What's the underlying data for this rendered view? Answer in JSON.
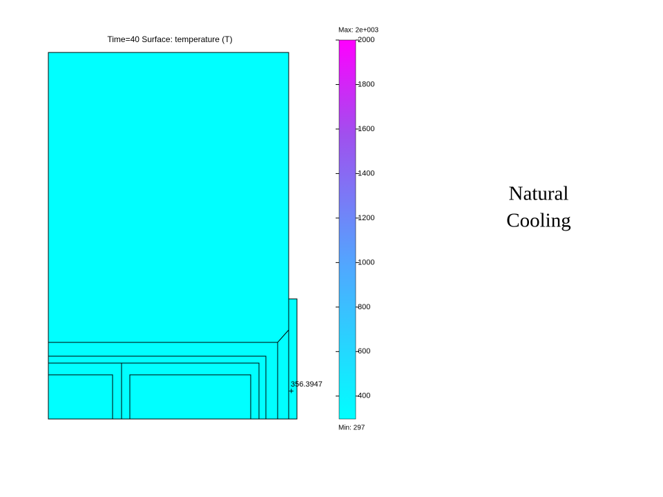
{
  "plot": {
    "title": "Time=40  Surface: temperature (T)",
    "probe_label": "356.3947",
    "colorbar": {
      "max_label": "Max: 2e+003",
      "min_label": "Min: 297",
      "range": [
        297,
        2000
      ],
      "ticks": [
        400,
        600,
        800,
        1000,
        1200,
        1400,
        1600,
        1800,
        2000
      ]
    }
  },
  "side_text": [
    "Natural",
    "Cooling"
  ]
}
